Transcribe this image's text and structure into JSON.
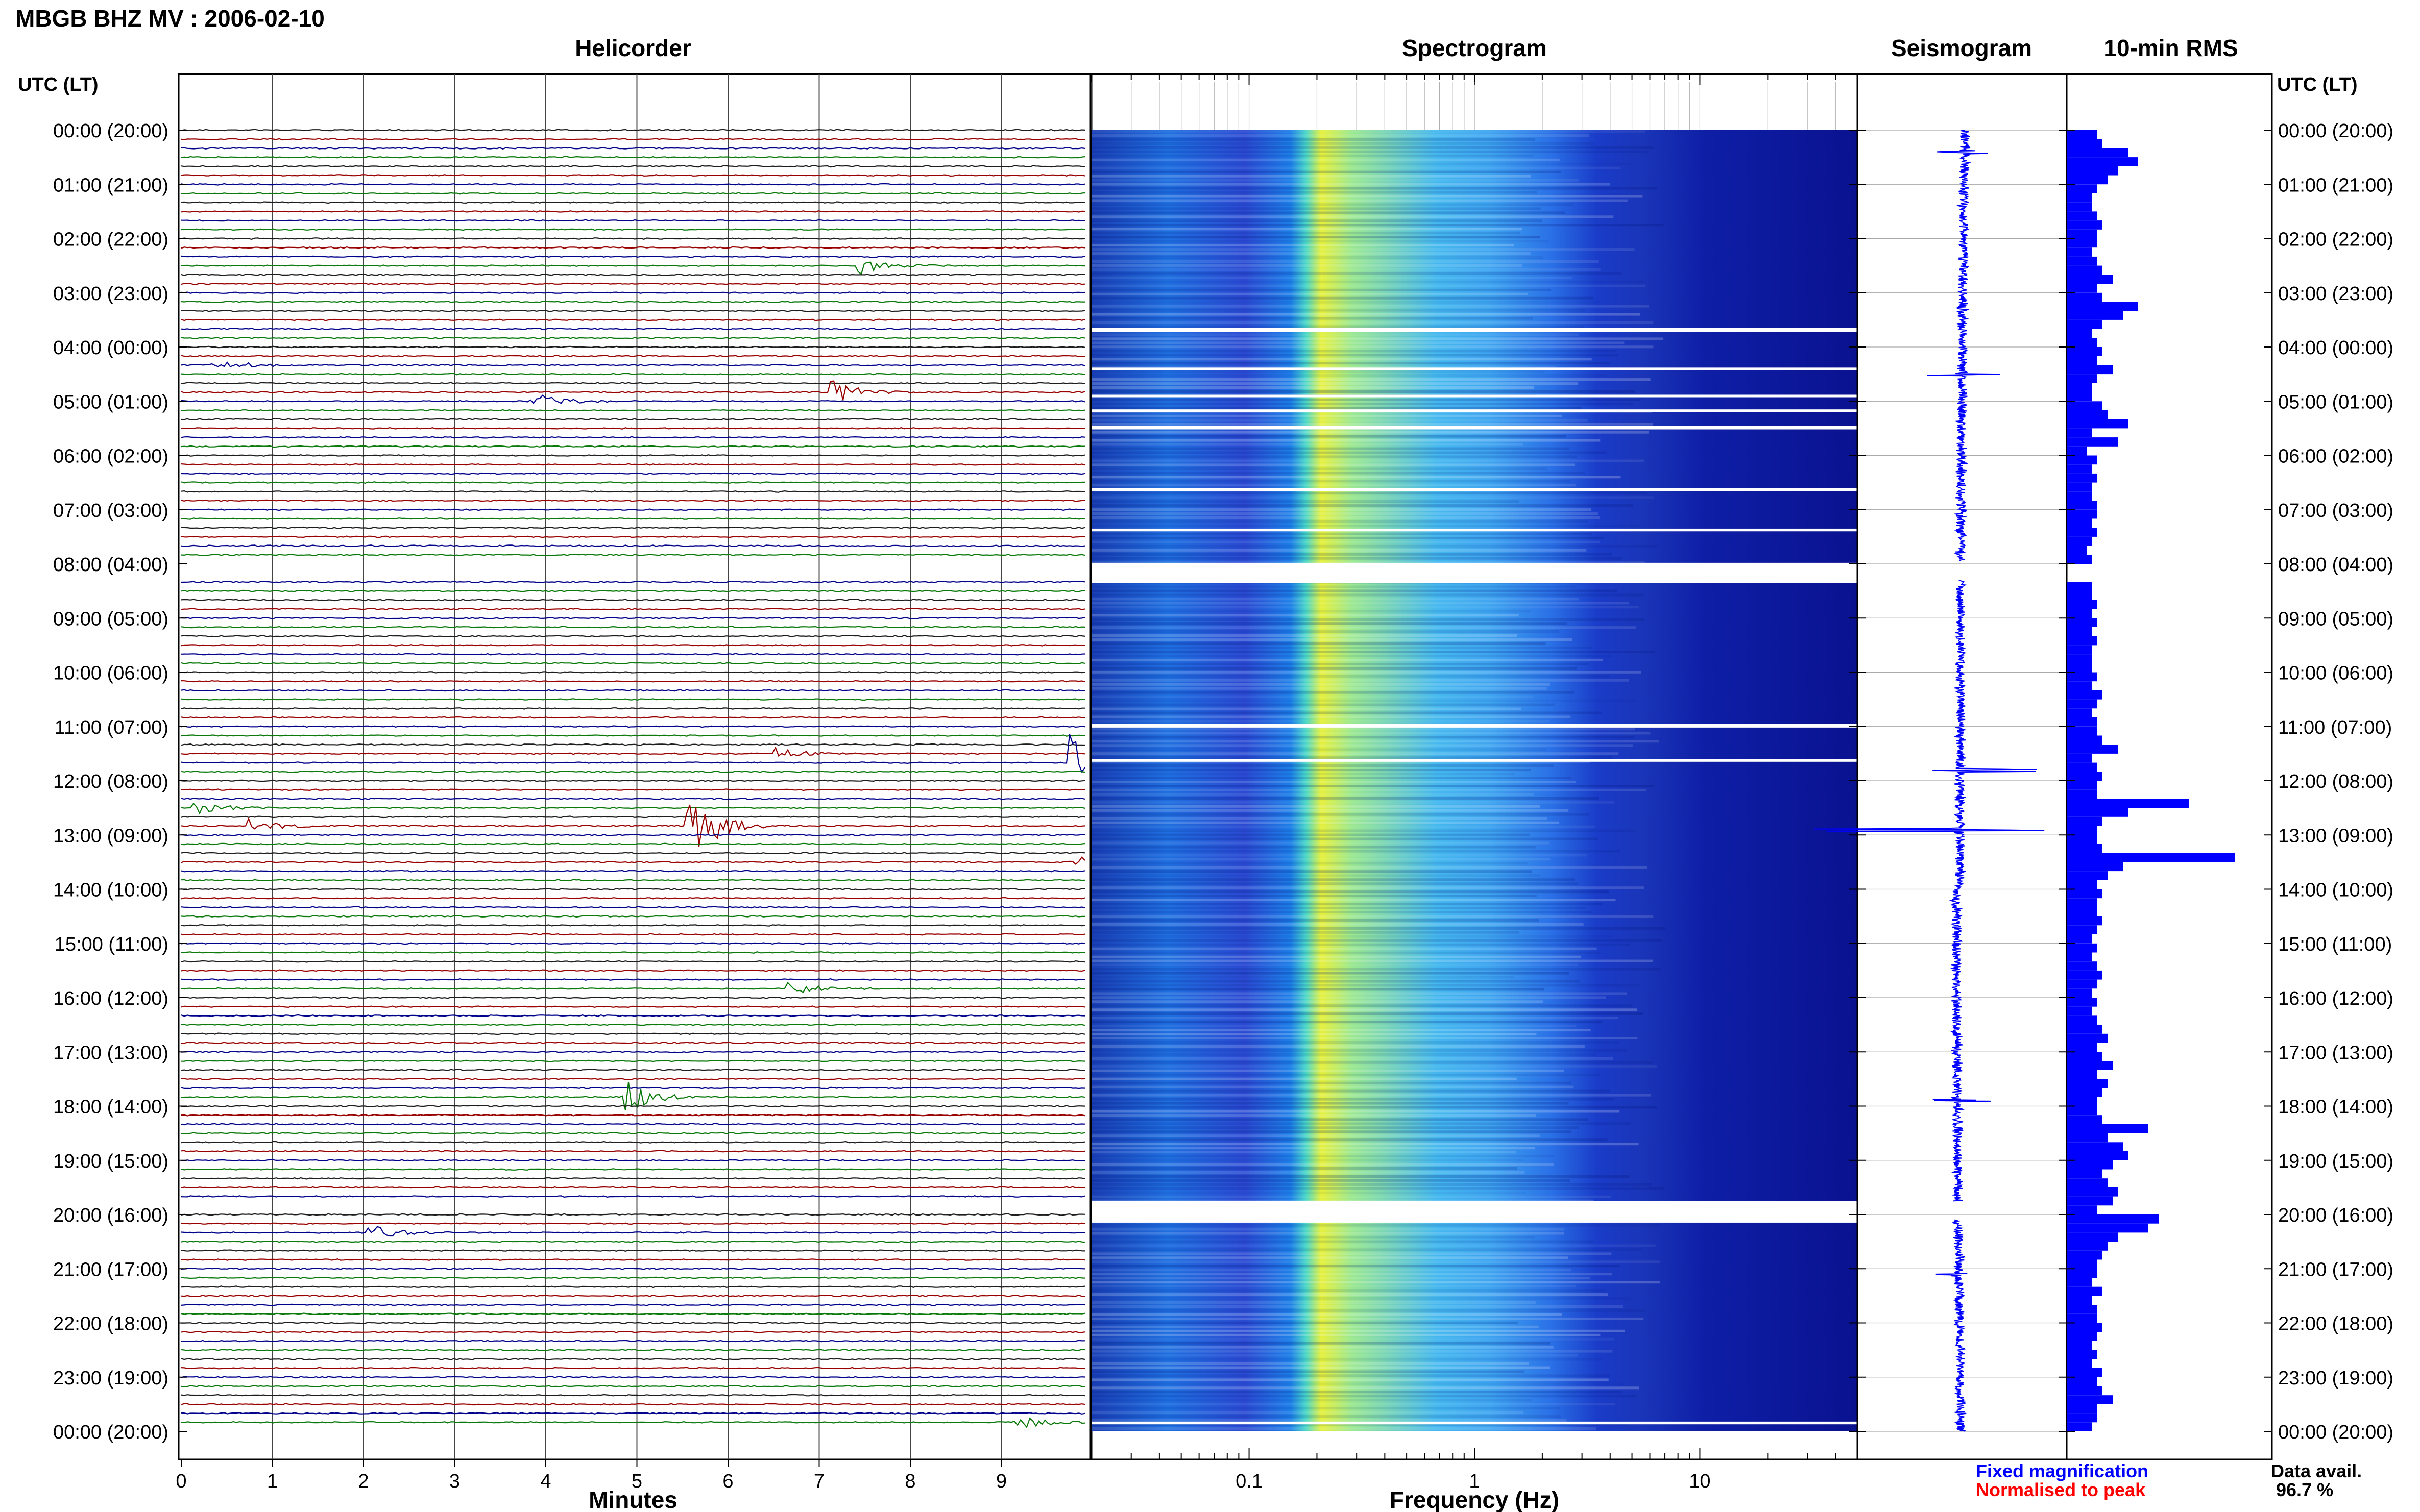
{
  "title": "MBGB BHZ MV : 2006-02-10",
  "panels": {
    "helicorder": "Helicorder",
    "spectrogram": "Spectrogram",
    "seismogram": "Seismogram",
    "rms": "10-min RMS"
  },
  "axis": {
    "time_header": "UTC (LT)",
    "minutes_label": "Minutes",
    "frequency_label": "Frequency (Hz)"
  },
  "legend": {
    "fixed": "Fixed magnification",
    "normalised": "Normalised to peak",
    "data_avail_label": "Data avail.",
    "data_avail_value": "96.7 %"
  },
  "colors": {
    "traces": [
      "#1d1d1d",
      "#990000",
      "#00008b",
      "#0b7a0b"
    ],
    "fixed_mag": "#0000ff",
    "normalised": "#ff0000",
    "rms_bar": "#0000ff",
    "spec_low": "#00008b",
    "spec_high": "#f0f020"
  },
  "chart_data": [
    {
      "type": "line",
      "name": "helicorder",
      "xlabel": "Minutes",
      "xlim": [
        0,
        10
      ],
      "x_ticks": [
        "0",
        "1",
        "2",
        "3",
        "4",
        "5",
        "6",
        "7",
        "8",
        "9"
      ],
      "y_ticks": [
        "00:00 (20:00)",
        "01:00 (21:00)",
        "02:00 (22:00)",
        "03:00 (23:00)",
        "04:00 (00:00)",
        "05:00 (01:00)",
        "06:00 (02:00)",
        "07:00 (03:00)",
        "08:00 (04:00)",
        "09:00 (05:00)",
        "10:00 (06:00)",
        "11:00 (07:00)",
        "12:00 (08:00)",
        "13:00 (09:00)",
        "14:00 (10:00)",
        "15:00 (11:00)",
        "16:00 (12:00)",
        "17:00 (13:00)",
        "18:00 (14:00)",
        "19:00 (15:00)",
        "20:00 (16:00)",
        "21:00 (17:00)",
        "22:00 (18:00)",
        "23:00 (19:00)",
        "00:00 (20:00)"
      ],
      "lines_per_hour": 6,
      "events": [
        {
          "hour": 12.9,
          "minute": 5.6,
          "amp": 3.0
        },
        {
          "hour": 11.6,
          "minute": 9.8,
          "amp": 2.0
        },
        {
          "hour": 17.9,
          "minute": 4.9,
          "amp": 1.2
        },
        {
          "hour": 4.8,
          "minute": 7.2,
          "amp": 0.8
        },
        {
          "hour": 5.0,
          "minute": 3.9,
          "amp": 0.7
        },
        {
          "hour": 4.4,
          "minute": 0.4,
          "amp": 0.6
        },
        {
          "hour": 2.5,
          "minute": 7.5,
          "amp": 0.6
        },
        {
          "hour": 12.8,
          "minute": 0.8,
          "amp": 0.6
        },
        {
          "hour": 13.5,
          "minute": 9.8,
          "amp": 0.5
        },
        {
          "hour": 23.8,
          "minute": 9.2,
          "amp": 0.5
        },
        {
          "hour": 12.5,
          "minute": 0.2,
          "amp": 0.5
        },
        {
          "hour": 20.3,
          "minute": 2.1,
          "amp": 0.6
        },
        {
          "hour": 11.5,
          "minute": 6.5,
          "amp": 0.6
        },
        {
          "hour": 15.8,
          "minute": 6.7,
          "amp": 0.5
        }
      ]
    },
    {
      "type": "heatmap",
      "name": "spectrogram",
      "xlabel": "Frequency (Hz)",
      "x_scale": "log",
      "xlim": [
        0.02,
        50
      ],
      "x_ticks": [
        0.1,
        1,
        10
      ],
      "x_tick_labels": [
        "0.1",
        "1",
        "10"
      ],
      "y_range_hours": [
        0,
        24
      ],
      "peak_frequency_hz": 0.25,
      "gaps_hours": [
        [
          3.65,
          3.72
        ],
        [
          4.38,
          4.42
        ],
        [
          4.88,
          4.92
        ],
        [
          5.15,
          5.2
        ],
        [
          5.45,
          5.52
        ],
        [
          6.6,
          6.66
        ],
        [
          7.35,
          7.4
        ],
        [
          7.98,
          8.35
        ],
        [
          10.95,
          11.02
        ],
        [
          11.6,
          11.65
        ],
        [
          19.75,
          20.15
        ],
        [
          23.82,
          23.87
        ]
      ]
    },
    {
      "type": "line",
      "name": "seismogram",
      "title": "Seismogram",
      "y_range_hours": [
        0,
        24
      ],
      "spikes": [
        {
          "hour": 0.4,
          "amp": 0.18
        },
        {
          "hour": 4.5,
          "amp": 0.22
        },
        {
          "hour": 11.8,
          "amp": 0.55
        },
        {
          "hour": 12.9,
          "amp": 0.9
        },
        {
          "hour": 17.9,
          "amp": 0.3
        },
        {
          "hour": 21.1,
          "amp": 0.15
        }
      ]
    },
    {
      "type": "bar",
      "name": "10-min RMS",
      "orientation": "horizontal",
      "bin_minutes": 10,
      "y_range_hours": [
        0,
        24
      ],
      "values_relative": [
        0.3,
        0.35,
        0.6,
        0.7,
        0.5,
        0.4,
        0.3,
        0.25,
        0.25,
        0.3,
        0.35,
        0.3,
        0.3,
        0.25,
        0.3,
        0.35,
        0.45,
        0.3,
        0.35,
        0.7,
        0.55,
        0.35,
        0.25,
        0.3,
        0.35,
        0.3,
        0.45,
        0.3,
        0.25,
        0.25,
        0.35,
        0.4,
        0.6,
        0.25,
        0.5,
        0.2,
        0.3,
        0.25,
        0.3,
        0.25,
        0.25,
        0.3,
        0.3,
        0.25,
        0.3,
        0.25,
        0.2,
        0.25,
        0.0,
        0.0,
        0.25,
        0.25,
        0.3,
        0.25,
        0.3,
        0.25,
        0.3,
        0.25,
        0.25,
        0.25,
        0.3,
        0.25,
        0.35,
        0.3,
        0.25,
        0.3,
        0.3,
        0.35,
        0.5,
        0.25,
        0.3,
        0.35,
        0.3,
        0.3,
        1.2,
        0.6,
        0.35,
        0.3,
        0.3,
        0.35,
        1.65,
        0.55,
        0.4,
        0.3,
        0.35,
        0.3,
        0.3,
        0.35,
        0.3,
        0.25,
        0.3,
        0.25,
        0.3,
        0.35,
        0.3,
        0.25,
        0.3,
        0.25,
        0.3,
        0.35,
        0.4,
        0.3,
        0.35,
        0.45,
        0.3,
        0.4,
        0.35,
        0.3,
        0.3,
        0.35,
        0.8,
        0.4,
        0.55,
        0.6,
        0.45,
        0.35,
        0.4,
        0.5,
        0.45,
        0.3,
        0.9,
        0.8,
        0.5,
        0.4,
        0.35,
        0.3,
        0.3,
        0.25,
        0.35,
        0.25,
        0.3,
        0.3,
        0.35,
        0.3,
        0.25,
        0.3,
        0.25,
        0.35,
        0.3,
        0.35,
        0.45,
        0.3,
        0.3,
        0.25
      ]
    }
  ]
}
